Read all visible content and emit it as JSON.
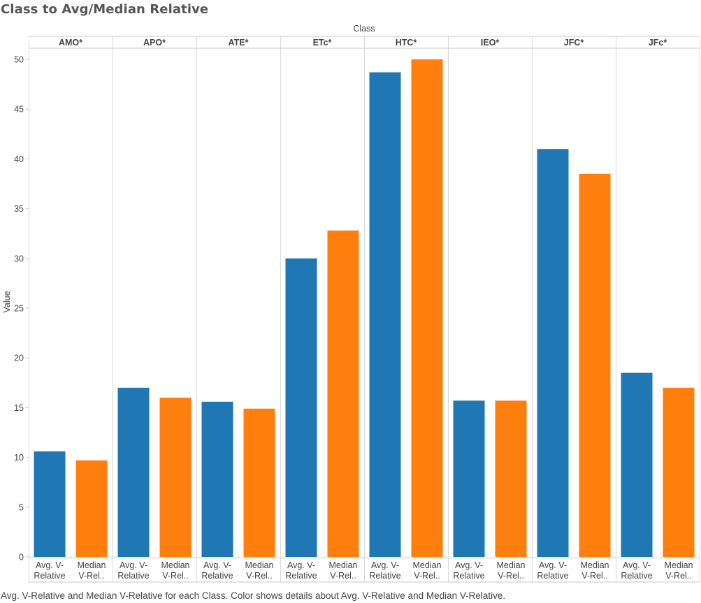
{
  "title": "Class to Avg/Median Relative",
  "caption": "Avg. V-Relative and Median V-Relative for each Class.  Color shows details about Avg. V-Relative and Median V-Relative.",
  "chart_data": {
    "type": "bar",
    "column_header": "Class",
    "ylabel": "Value",
    "ylim": [
      0,
      51.8
    ],
    "yticks": [
      0,
      5,
      10,
      15,
      20,
      25,
      30,
      35,
      40,
      45,
      50
    ],
    "grid": false,
    "legend": "none",
    "categories": [
      "AMO*",
      "APO*",
      "ATE*",
      "ETc*",
      "HTC*",
      "IEO*",
      "JFC*",
      "JFc*"
    ],
    "bar_labels": [
      [
        "Avg. V-",
        "Relative"
      ],
      [
        "Median",
        "V-Rel.."
      ]
    ],
    "series": [
      {
        "color": "#1f77b4",
        "values": [
          10.6,
          17.0,
          15.6,
          30.0,
          48.7,
          15.7,
          41.0,
          18.5
        ]
      },
      {
        "color": "#ff7f0e",
        "values": [
          9.7,
          16.0,
          14.9,
          32.8,
          50.0,
          15.7,
          38.5,
          17.0
        ]
      }
    ]
  }
}
